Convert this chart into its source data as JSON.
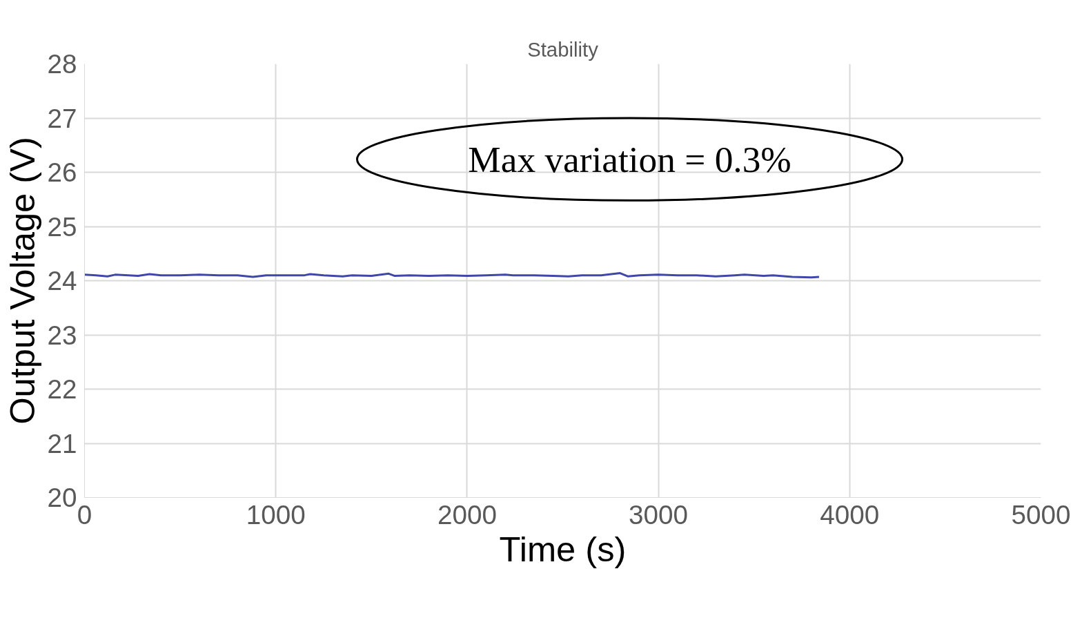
{
  "chart_data": {
    "type": "line",
    "title": "Stability",
    "xlabel": "Time (s)",
    "ylabel": "Output Voltage (V)",
    "annotations": [
      "Max variation = 0.3%"
    ],
    "x": [
      0,
      60,
      120,
      160,
      230,
      280,
      340,
      400,
      500,
      600,
      700,
      800,
      880,
      950,
      1050,
      1150,
      1180,
      1250,
      1350,
      1400,
      1500,
      1590,
      1620,
      1700,
      1800,
      1900,
      2000,
      2100,
      2200,
      2240,
      2350,
      2450,
      2530,
      2600,
      2700,
      2800,
      2840,
      2900,
      3000,
      3100,
      3200,
      3300,
      3400,
      3450,
      3550,
      3600,
      3700,
      3800,
      3840
    ],
    "series": [
      {
        "color": "#3f48a8",
        "values": [
          24.11,
          24.1,
          24.08,
          24.11,
          24.1,
          24.09,
          24.12,
          24.1,
          24.1,
          24.11,
          24.1,
          24.1,
          24.07,
          24.1,
          24.1,
          24.1,
          24.12,
          24.1,
          24.08,
          24.1,
          24.09,
          24.13,
          24.09,
          24.1,
          24.09,
          24.1,
          24.09,
          24.1,
          24.11,
          24.1,
          24.1,
          24.09,
          24.08,
          24.1,
          24.1,
          24.14,
          24.08,
          24.1,
          24.11,
          24.1,
          24.1,
          24.08,
          24.1,
          24.11,
          24.09,
          24.1,
          24.07,
          24.06,
          24.07
        ]
      }
    ],
    "xlim": [
      0,
      5000
    ],
    "ylim": [
      20,
      28
    ],
    "xticks": [
      0,
      1000,
      2000,
      3000,
      4000,
      5000
    ],
    "yticks": [
      20,
      21,
      22,
      23,
      24,
      25,
      26,
      27,
      28
    ],
    "grid": true,
    "marker": "none",
    "line_style": "solid"
  }
}
